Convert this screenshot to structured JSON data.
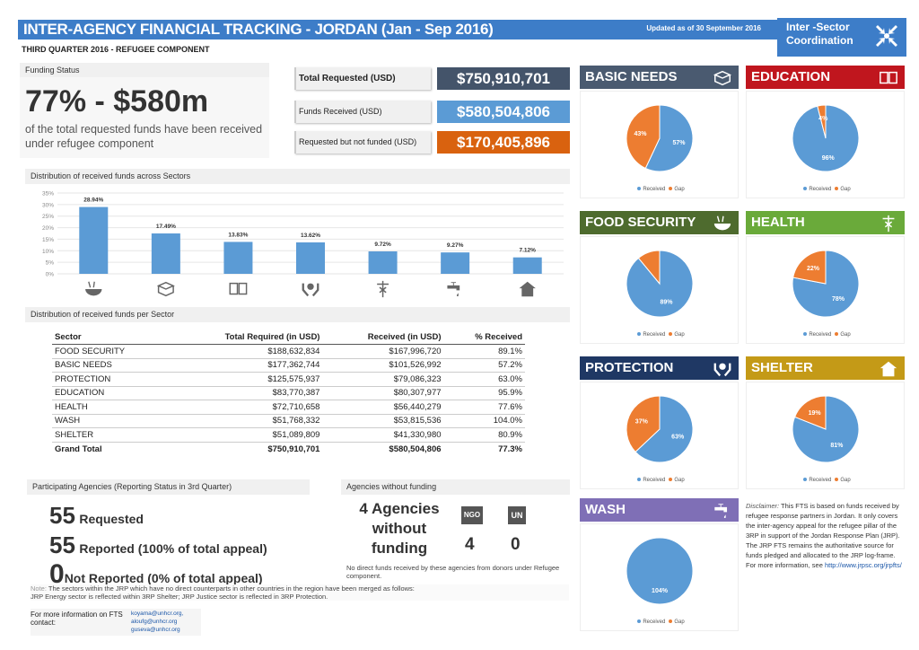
{
  "header": {
    "title": "INTER-AGENCY FINANCIAL TRACKING - JORDAN (Jan - Sep 2016)",
    "updated": "Updated as of 30 September 2016",
    "coord_line1": "Inter -Sector",
    "coord_line2": "Coordination",
    "coord_icon": "arrows-converge-icon"
  },
  "subtitle": "THIRD QUARTER 2016 - REFUGEE COMPONENT",
  "funding_status": {
    "label": "Funding Status",
    "headline": "77% - $580m",
    "description": "of the total requested funds have been received under refugee component"
  },
  "summary": [
    {
      "label": "Total Requested (USD)",
      "value": "$750,910,701",
      "color": "#44546a"
    },
    {
      "label": "Funds Received (USD)",
      "value": "$580,504,806",
      "color": "#5b9bd5"
    },
    {
      "label": "Requested but not funded (USD)",
      "value": "$170,405,896",
      "color": "#d9620f"
    }
  ],
  "chart_data": {
    "type": "bar",
    "title": "Distribution of received funds across Sectors",
    "categories": [
      "FOOD SECURITY",
      "BASIC NEEDS",
      "EDUCATION",
      "PROTECTION",
      "HEALTH",
      "WASH",
      "SHELTER"
    ],
    "category_icons": [
      "bowl-icon",
      "box-icon",
      "book-icon",
      "hands-icon",
      "caduceus-icon",
      "tap-icon",
      "house-icon"
    ],
    "values": [
      28.94,
      17.49,
      13.83,
      13.62,
      9.72,
      9.27,
      7.12
    ],
    "value_labels": [
      "28.94%",
      "17.49%",
      "13.83%",
      "13.62%",
      "9.72%",
      "9.27%",
      "7.12%"
    ],
    "ylim": [
      0,
      35
    ],
    "yticks": [
      "0%",
      "5%",
      "10%",
      "15%",
      "20%",
      "25%",
      "30%",
      "35%"
    ],
    "grid": true,
    "color": "#5b9bd5"
  },
  "table": {
    "title": "Distribution of received funds per Sector",
    "headers": [
      "Sector",
      "Total Required (in USD)",
      "Received (in USD)",
      "% Received"
    ],
    "rows": [
      [
        "FOOD SECURITY",
        "$188,632,834",
        "$167,996,720",
        "89.1%"
      ],
      [
        "BASIC NEEDS",
        "$177,362,744",
        "$101,526,992",
        "57.2%"
      ],
      [
        "PROTECTION",
        "$125,575,937",
        "$79,086,323",
        "63.0%"
      ],
      [
        "EDUCATION",
        "$83,770,387",
        "$80,307,977",
        "95.9%"
      ],
      [
        "HEALTH",
        "$72,710,658",
        "$56,440,279",
        "77.6%"
      ],
      [
        "WASH",
        "$51,768,332",
        "$53,815,536",
        "104.0%"
      ],
      [
        "SHELTER",
        "$51,089,809",
        "$41,330,980",
        "80.9%"
      ]
    ],
    "total": [
      "Grand Total",
      "$750,910,701",
      "$580,504,806",
      "77.3%"
    ]
  },
  "agencies": {
    "title": "Participating Agencies (Reporting Status in 3rd Quarter)",
    "requested_n": "55",
    "requested": "Requested",
    "reported_n": "55",
    "reported": "Reported (100% of total appeal)",
    "not_reported_n": "0",
    "not_reported": "Not Reported (0% of total appeal)"
  },
  "no_funding": {
    "title": "Agencies without funding",
    "l1": "4 Agencies",
    "l2": "without",
    "l3": "funding",
    "ngo_label": "NGO",
    "ngo_count": "4",
    "un_label": "UN",
    "un_count": "0",
    "note": "No direct funds received by these agencies from donors under Refugee component."
  },
  "note": {
    "label": "Note:",
    "text": "The sectors within the JRP which have no direct counterparts in other countries in the region have been merged as follows:",
    "text2": "JRP Energy sector is reflected within 3RP Shelter; JRP Justice sector is reflected in 3RP Protection."
  },
  "contact": {
    "label": "For more information on FTS contact:",
    "emails": [
      "koyama@unhcr.org,",
      "aloufg@unhcr.org",
      "guseva@unhcr.org"
    ]
  },
  "pies": [
    {
      "name": "BASIC NEEDS",
      "color": "#4a5a70",
      "icon": "box-icon",
      "received": 57,
      "gap": 43,
      "rl": "57%",
      "gl": "43%"
    },
    {
      "name": "EDUCATION",
      "color": "#c0161e",
      "icon": "book-icon",
      "received": 96,
      "gap": 4,
      "rl": "96%",
      "gl": "4%"
    },
    {
      "name": "FOOD SECURITY",
      "color": "#4e6b2e",
      "icon": "bowl-icon",
      "received": 89,
      "gap": 11,
      "rl": "89%",
      "gl": ""
    },
    {
      "name": "HEALTH",
      "color": "#6aaa3a",
      "icon": "caduceus-icon",
      "received": 78,
      "gap": 22,
      "rl": "78%",
      "gl": "22%"
    },
    {
      "name": "PROTECTION",
      "color": "#1f3864",
      "icon": "hands-icon",
      "received": 63,
      "gap": 37,
      "rl": "63%",
      "gl": "37%"
    },
    {
      "name": "SHELTER",
      "color": "#c49a17",
      "icon": "house-icon",
      "received": 81,
      "gap": 19,
      "rl": "81%",
      "gl": "19%"
    },
    {
      "name": "WASH",
      "color": "#7f6fb6",
      "icon": "tap-icon",
      "received": 104,
      "gap": 0,
      "rl": "104%",
      "gl": ""
    }
  ],
  "pie_legend": {
    "received": "Received",
    "gap": "Gap",
    "received_color": "#5b9bd5",
    "gap_color": "#ed7d31"
  },
  "disclaimer": {
    "label": "Disclaimer:",
    "text": "This FTS is based on funds received by refugee response partners in Jordan. It only covers the inter-agency appeal for the refugee pillar of the 3RP in support of the Jordan Response Plan (JRP). The JRP FTS remains the authoritative source for funds pledged and allocated to the JRP log-frame. For more information, see",
    "link": "http://www.jrpsc.org/jrpfts/"
  }
}
